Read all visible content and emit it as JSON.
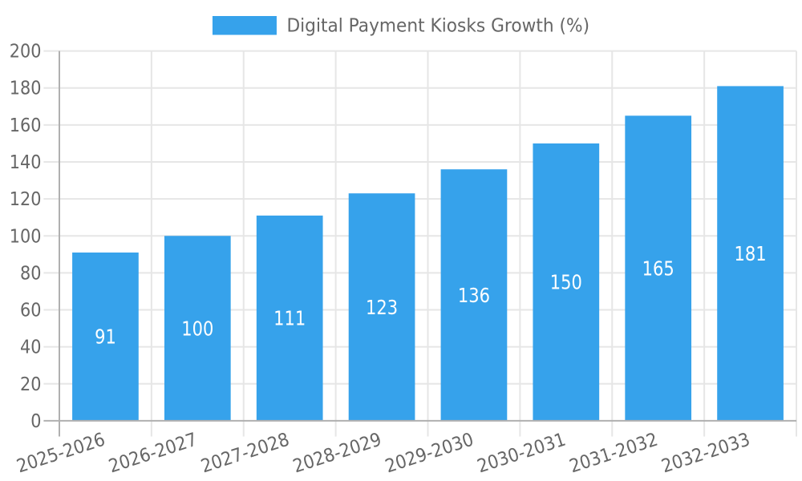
{
  "chart_data": {
    "type": "bar",
    "title": "Digital Payment Kiosks Growth (%)",
    "categories": [
      "2025-2026",
      "2026-2027",
      "2027-2028",
      "2028-2029",
      "2029-2030",
      "2030-2031",
      "2031-2032",
      "2032-2033"
    ],
    "values": [
      91,
      100,
      111,
      123,
      136,
      150,
      165,
      181
    ],
    "series": [
      {
        "name": "Digital Payment Kiosks Growth (%)",
        "values": [
          91,
          100,
          111,
          123,
          136,
          150,
          165,
          181
        ]
      }
    ],
    "y_ticks": [
      0,
      20,
      40,
      60,
      80,
      100,
      120,
      140,
      160,
      180,
      200
    ],
    "ylim": [
      0,
      200
    ],
    "y_tick_step": 20,
    "xlabel": "",
    "ylabel": "",
    "grid": true,
    "legend_position": "top",
    "bar_value_labels_shown": true,
    "x_tick_rotation_deg": -18,
    "colors": {
      "bar": "#36a2eb",
      "value_label": "#ffffff",
      "tick_label": "#666666",
      "legend_label": "#666666",
      "grid": "#e6e6e6",
      "axis": "#b0b0b0"
    }
  },
  "legend": {
    "label": "Digital Payment Kiosks Growth (%)"
  }
}
